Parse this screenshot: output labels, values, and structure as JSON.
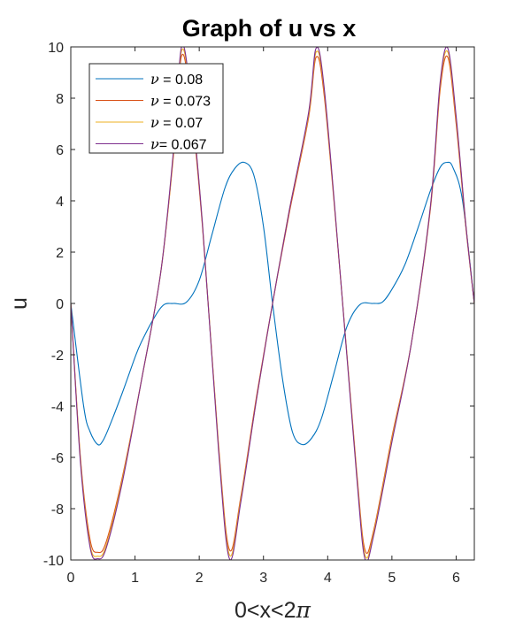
{
  "chart_data": {
    "type": "line",
    "title": "Graph of u vs x",
    "xlabel_prefix": "0<x<2",
    "xlabel_symbol": "π",
    "ylabel": "u",
    "xlim": [
      0,
      6.2832
    ],
    "ylim": [
      -10,
      10
    ],
    "xticks": [
      0,
      1,
      2,
      3,
      4,
      5,
      6
    ],
    "xtick_labels": [
      "0",
      "1",
      "2",
      "3",
      "4",
      "5",
      "6"
    ],
    "yticks": [
      -10,
      -8,
      -6,
      -4,
      -2,
      0,
      2,
      4,
      6,
      8,
      10
    ],
    "ytick_labels": [
      "-10",
      "-8",
      "-6",
      "-4",
      "-2",
      "0",
      "2",
      "4",
      "6",
      "8",
      "10"
    ],
    "grid": false,
    "legend_position": "top-left",
    "series": [
      {
        "name_symbol": "ν",
        "name_rest": " = 0.08",
        "color": "#0072BD",
        "x": [
          0,
          0.2,
          0.3,
          0.42,
          0.5,
          0.6,
          0.8,
          1.0,
          1.1,
          1.3,
          1.45,
          1.6,
          1.8,
          2.0,
          2.2,
          2.4,
          2.55,
          2.7,
          2.85,
          3.0,
          3.1416,
          3.3,
          3.45,
          3.6,
          3.75,
          3.9,
          4.1,
          4.3,
          4.5,
          4.7,
          4.85,
          5.0,
          5.2,
          5.4,
          5.6,
          5.75,
          5.86,
          5.95,
          6.1,
          6.2832
        ],
        "y": [
          0,
          -4.0,
          -5.0,
          -5.5,
          -5.35,
          -4.8,
          -3.5,
          -2.1,
          -1.5,
          -0.55,
          -0.05,
          0.0,
          0.05,
          0.9,
          2.7,
          4.5,
          5.25,
          5.5,
          5.0,
          3.0,
          0,
          -3.0,
          -5.0,
          -5.5,
          -5.25,
          -4.5,
          -2.7,
          -0.9,
          -0.05,
          0.0,
          0.05,
          0.55,
          1.5,
          2.9,
          4.4,
          5.3,
          5.5,
          5.3,
          4.0,
          0
        ]
      },
      {
        "name_symbol": "ν",
        "name_rest": " = 0.073",
        "color": "#D95319",
        "x": [
          0,
          0.15,
          0.3,
          0.42,
          0.55,
          0.8,
          1.1,
          1.4,
          1.6,
          1.72,
          1.85,
          2.05,
          2.3,
          2.47,
          2.65,
          2.9,
          3.1416,
          3.4,
          3.7,
          3.82,
          3.95,
          4.2,
          4.45,
          4.58,
          4.72,
          5.0,
          5.3,
          5.6,
          5.75,
          5.87,
          6.0,
          6.15,
          6.2832
        ],
        "y": [
          0,
          -6.0,
          -9.2,
          -9.7,
          -9.3,
          -6.8,
          -3.0,
          1.2,
          5.8,
          9.6,
          8.2,
          3.0,
          -5.5,
          -9.6,
          -7.5,
          -3.5,
          0,
          3.5,
          7.2,
          9.6,
          8.0,
          1.0,
          -6.5,
          -9.6,
          -8.8,
          -5.2,
          -1.6,
          3.7,
          8.3,
          9.6,
          7.0,
          3.0,
          0
        ]
      },
      {
        "name_symbol": "ν",
        "name_rest": " = 0.07",
        "color": "#EDB120",
        "x": [
          0,
          0.15,
          0.3,
          0.42,
          0.55,
          0.8,
          1.1,
          1.4,
          1.6,
          1.72,
          1.85,
          2.05,
          2.3,
          2.47,
          2.65,
          2.9,
          3.1416,
          3.4,
          3.7,
          3.82,
          3.95,
          4.2,
          4.45,
          4.58,
          4.72,
          5.0,
          5.3,
          5.6,
          5.75,
          5.87,
          6.0,
          6.15,
          6.2832
        ],
        "y": [
          0,
          -6.1,
          -9.4,
          -9.85,
          -9.45,
          -6.9,
          -3.0,
          1.2,
          5.9,
          9.8,
          8.4,
          3.1,
          -5.6,
          -9.8,
          -7.6,
          -3.6,
          0,
          3.6,
          7.3,
          9.8,
          8.2,
          1.0,
          -6.6,
          -9.8,
          -8.9,
          -5.3,
          -1.6,
          3.8,
          8.5,
          9.8,
          7.2,
          3.1,
          0
        ]
      },
      {
        "name_symbol": "ν",
        "name_rest": "= 0.067",
        "color": "#7E2F8E",
        "x": [
          0,
          0.15,
          0.3,
          0.42,
          0.55,
          0.8,
          1.1,
          1.4,
          1.6,
          1.72,
          1.85,
          2.05,
          2.3,
          2.47,
          2.65,
          2.9,
          3.1416,
          3.4,
          3.7,
          3.82,
          3.95,
          4.2,
          4.45,
          4.58,
          4.72,
          5.0,
          5.3,
          5.6,
          5.75,
          5.87,
          6.0,
          6.15,
          6.2832
        ],
        "y": [
          0,
          -6.2,
          -9.5,
          -9.95,
          -9.55,
          -7.0,
          -3.0,
          1.2,
          6.0,
          9.95,
          8.5,
          3.1,
          -5.7,
          -9.95,
          -7.7,
          -3.6,
          0,
          3.6,
          7.4,
          9.95,
          8.3,
          1.0,
          -6.7,
          -9.95,
          -9.0,
          -5.4,
          -1.6,
          3.8,
          8.6,
          9.95,
          7.3,
          3.1,
          0
        ]
      }
    ]
  }
}
